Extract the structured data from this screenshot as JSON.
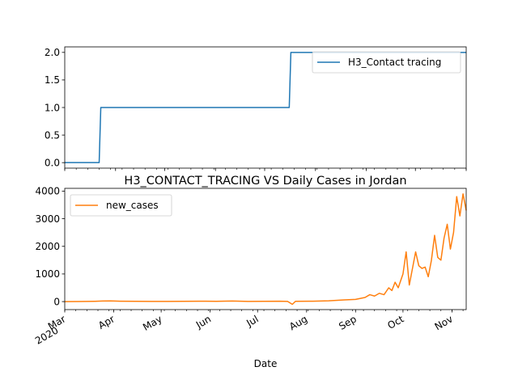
{
  "chart_data": [
    {
      "type": "line",
      "title": "",
      "xlabel": "",
      "ylabel": "",
      "series": [
        {
          "name": "H3_Contact tracing",
          "color": "#1f77b4",
          "points": [
            [
              "2020-03-01",
              0
            ],
            [
              "2020-03-22",
              0
            ],
            [
              "2020-03-23",
              1
            ],
            [
              "2020-07-16",
              1
            ],
            [
              "2020-07-17",
              2
            ],
            [
              "2020-11-01",
              2
            ]
          ]
        }
      ],
      "xlim": [
        "2020-03-01",
        "2020-11-01"
      ],
      "ylim": [
        -0.1,
        2.1
      ],
      "y_ticks": [
        "0.0",
        "0.5",
        "1.0",
        "1.5",
        "2.0"
      ],
      "y_tick_values": [
        0,
        0.5,
        1,
        1.5,
        2
      ],
      "legend_position": "upper right",
      "grid": false,
      "x_tick_labels_shown": false
    },
    {
      "type": "line",
      "title": "H3_CONTACT_TRACING VS Daily Cases in Jordan",
      "xlabel": "Date",
      "ylabel": "",
      "series": [
        {
          "name": "new_cases",
          "color": "#ff7f0e",
          "points": [
            [
              "2020-03-01",
              0
            ],
            [
              "2020-03-10",
              2
            ],
            [
              "2020-03-20",
              10
            ],
            [
              "2020-03-25",
              20
            ],
            [
              "2020-03-30",
              25
            ],
            [
              "2020-04-05",
              15
            ],
            [
              "2020-04-15",
              10
            ],
            [
              "2020-04-25",
              5
            ],
            [
              "2020-05-05",
              5
            ],
            [
              "2020-05-15",
              10
            ],
            [
              "2020-05-25",
              15
            ],
            [
              "2020-06-05",
              10
            ],
            [
              "2020-06-15",
              20
            ],
            [
              "2020-06-25",
              5
            ],
            [
              "2020-07-05",
              10
            ],
            [
              "2020-07-15",
              15
            ],
            [
              "2020-07-20",
              5
            ],
            [
              "2020-07-23",
              -100
            ],
            [
              "2020-07-25",
              10
            ],
            [
              "2020-08-05",
              15
            ],
            [
              "2020-08-15",
              30
            ],
            [
              "2020-08-25",
              60
            ],
            [
              "2020-09-01",
              80
            ],
            [
              "2020-09-07",
              150
            ],
            [
              "2020-09-10",
              250
            ],
            [
              "2020-09-13",
              200
            ],
            [
              "2020-09-16",
              300
            ],
            [
              "2020-09-19",
              250
            ],
            [
              "2020-09-22",
              500
            ],
            [
              "2020-09-24",
              400
            ],
            [
              "2020-09-26",
              700
            ],
            [
              "2020-09-28",
              500
            ],
            [
              "2020-10-01",
              1000
            ],
            [
              "2020-10-03",
              1800
            ],
            [
              "2020-10-05",
              600
            ],
            [
              "2020-10-07",
              1200
            ],
            [
              "2020-10-09",
              1800
            ],
            [
              "2020-10-11",
              1300
            ],
            [
              "2020-10-13",
              1200
            ],
            [
              "2020-10-15",
              1250
            ],
            [
              "2020-10-17",
              900
            ],
            [
              "2020-10-19",
              1500
            ],
            [
              "2020-10-21",
              2400
            ],
            [
              "2020-10-23",
              1600
            ],
            [
              "2020-10-25",
              1500
            ],
            [
              "2020-10-27",
              2300
            ],
            [
              "2020-10-29",
              2800
            ],
            [
              "2020-10-31",
              1900
            ],
            [
              "2020-11-02",
              2500
            ],
            [
              "2020-11-04",
              3800
            ],
            [
              "2020-11-06",
              3100
            ],
            [
              "2020-11-08",
              3900
            ],
            [
              "2020-11-10",
              3300
            ]
          ]
        }
      ],
      "xlim": [
        "2020-03-01",
        "2020-11-10"
      ],
      "ylim": [
        -290,
        4100
      ],
      "y_ticks": [
        "0",
        "1000",
        "2000",
        "3000",
        "4000"
      ],
      "y_tick_values": [
        0,
        1000,
        2000,
        3000,
        4000
      ],
      "x_ticks": [
        "Mar\n2020",
        "Apr",
        "May",
        "Jun",
        "Jul",
        "Aug",
        "Sep",
        "Oct",
        "Nov"
      ],
      "x_tick_dates": [
        "2020-03-01",
        "2020-04-01",
        "2020-05-01",
        "2020-06-01",
        "2020-07-01",
        "2020-08-01",
        "2020-09-01",
        "2020-10-01",
        "2020-11-01"
      ],
      "legend_position": "upper left",
      "grid": false
    }
  ]
}
